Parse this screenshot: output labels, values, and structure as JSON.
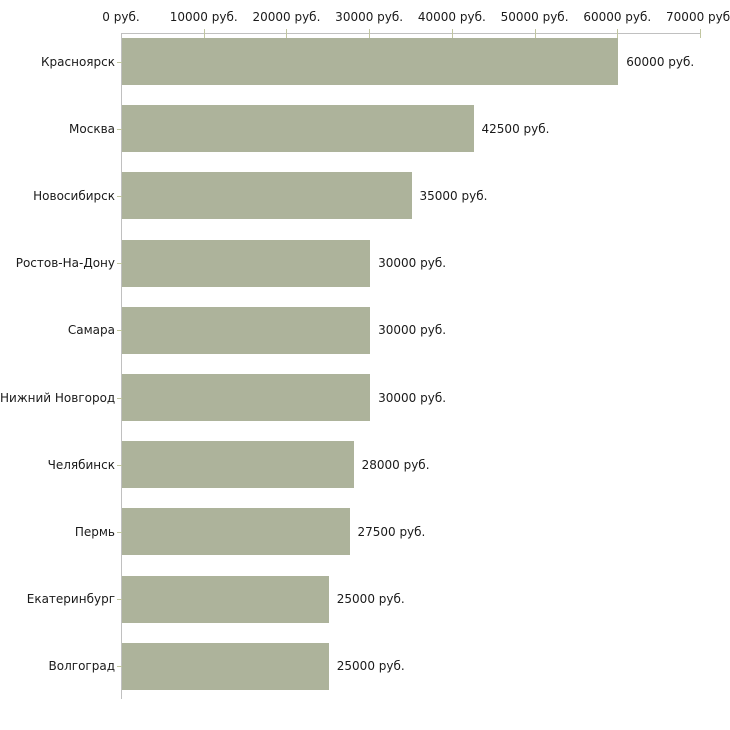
{
  "chart_data": {
    "type": "bar",
    "orientation": "horizontal",
    "title": "",
    "xlabel": "",
    "ylabel": "",
    "unit": "руб.",
    "categories": [
      "Красноярск",
      "Москва",
      "Новосибирск",
      "Ростов-На-Дону",
      "Самара",
      "Нижний Новгород",
      "Челябинск",
      "Пермь",
      "Екатеринбург",
      "Волгоград"
    ],
    "values": [
      60000,
      42500,
      35000,
      30000,
      30000,
      30000,
      28000,
      27500,
      25000,
      25000
    ],
    "value_labels": [
      "60000 руб.",
      "42500 руб.",
      "35000 руб.",
      "30000 руб.",
      "30000 руб.",
      "30000 руб.",
      "28000 руб.",
      "27500 руб.",
      "25000 руб.",
      "25000 руб."
    ],
    "x_tick_values": [
      0,
      10000,
      20000,
      30000,
      40000,
      50000,
      60000,
      70000
    ],
    "x_tick_labels": [
      "0 руб.",
      "10000 руб.",
      "20000 руб.",
      "30000 руб.",
      "40000 руб.",
      "50000 руб.",
      "60000 руб.",
      "70000 руб."
    ],
    "xlim": [
      0,
      70000
    ],
    "grid": "off",
    "legend": "none",
    "axis_position": "top-left",
    "colors": {
      "bar": "#adb39b",
      "axis_line": "#c0c0c0",
      "tick_mark": "#c1c6a0",
      "text": "#1a1a1a",
      "background": "#ffffff"
    }
  }
}
